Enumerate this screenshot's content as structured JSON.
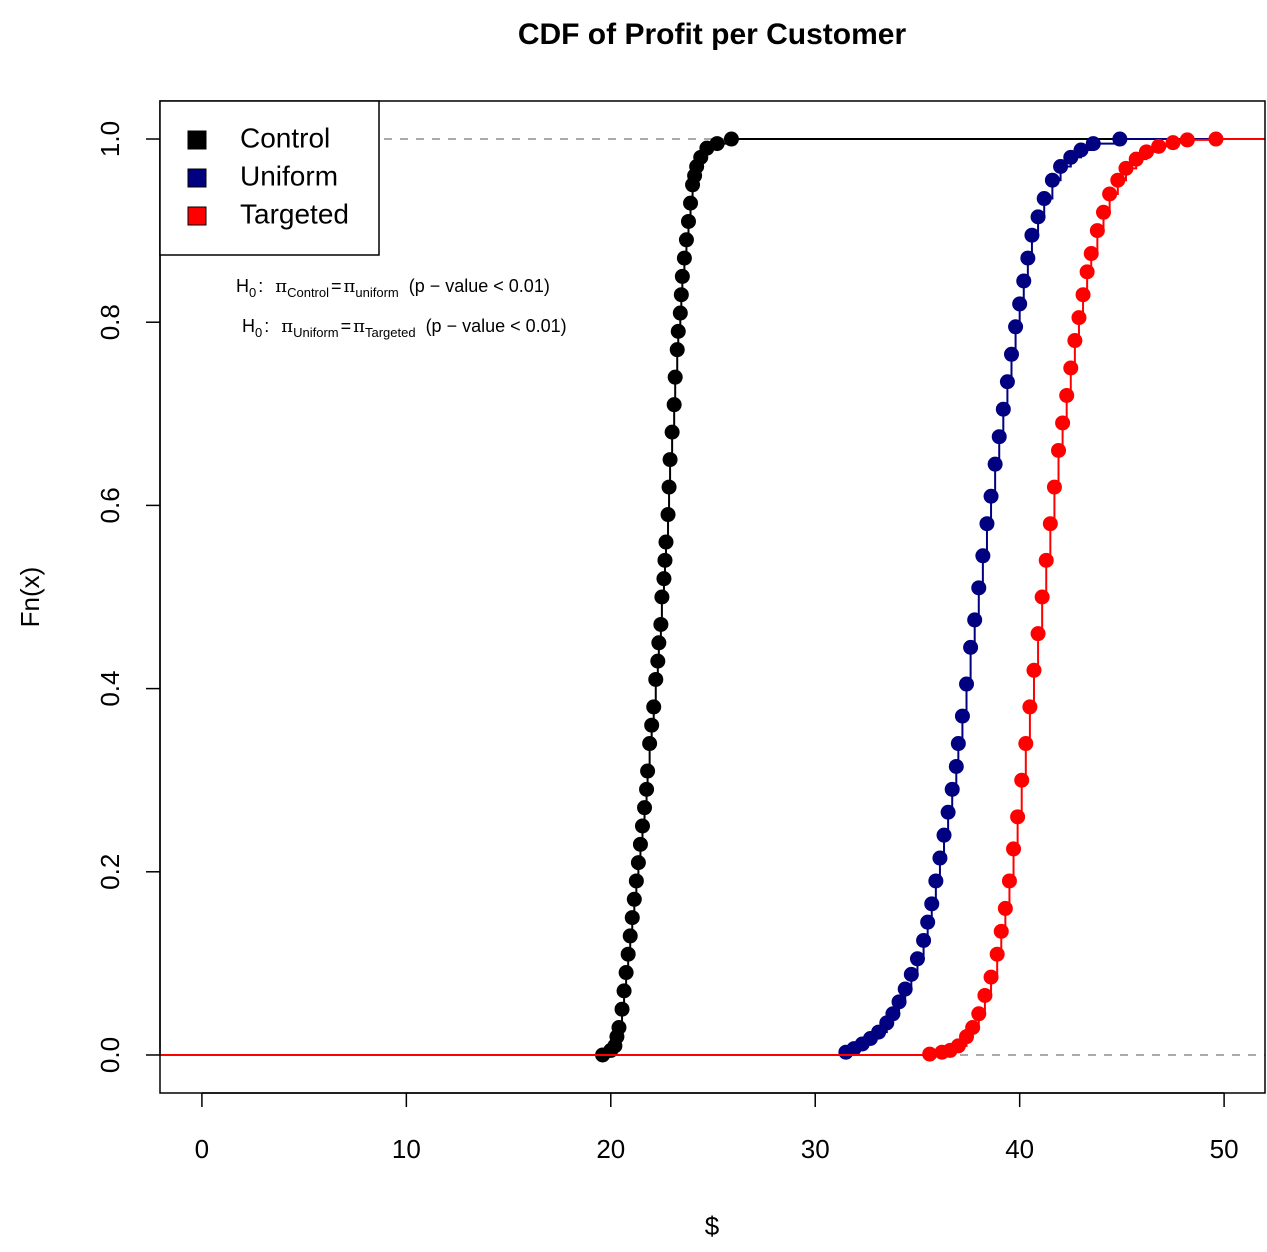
{
  "chart_data": {
    "type": "scatter",
    "title": "CDF of Profit per Customer",
    "x_label": "$",
    "y_label": "Fn(x)",
    "xlim": [
      -2.05,
      52.0
    ],
    "ylim": [
      -0.0415,
      1.0415
    ],
    "xticks": [
      0,
      10,
      20,
      30,
      40,
      50
    ],
    "yticks": [
      {
        "value": 0,
        "label": "0.0"
      },
      0.2,
      0.4,
      0.6,
      0.8,
      {
        "value": 1,
        "label": "1.0"
      }
    ],
    "reference_lines": [
      0,
      1
    ],
    "legend": "topleft",
    "series": [
      {
        "name": "Control",
        "color": "#000000",
        "x": [
          19.6,
          20.0,
          20.2,
          20.3,
          20.4,
          20.55,
          20.65,
          20.75,
          20.85,
          20.95,
          21.05,
          21.15,
          21.25,
          21.35,
          21.45,
          21.55,
          21.65,
          21.75,
          21.8,
          21.9,
          22.0,
          22.1,
          22.2,
          22.3,
          22.35,
          22.45,
          22.5,
          22.6,
          22.65,
          22.7,
          22.8,
          22.85,
          22.9,
          23.0,
          23.1,
          23.15,
          23.25,
          23.3,
          23.4,
          23.45,
          23.5,
          23.6,
          23.7,
          23.8,
          23.9,
          24.0,
          24.1,
          24.2,
          24.4,
          24.7,
          25.2,
          25.9
        ],
        "values": [
          0.0,
          0.005,
          0.01,
          0.02,
          0.03,
          0.05,
          0.07,
          0.09,
          0.11,
          0.13,
          0.15,
          0.17,
          0.19,
          0.21,
          0.23,
          0.25,
          0.27,
          0.29,
          0.31,
          0.34,
          0.36,
          0.38,
          0.41,
          0.43,
          0.45,
          0.47,
          0.5,
          0.52,
          0.54,
          0.56,
          0.59,
          0.62,
          0.65,
          0.68,
          0.71,
          0.74,
          0.77,
          0.79,
          0.81,
          0.83,
          0.85,
          0.87,
          0.89,
          0.91,
          0.93,
          0.95,
          0.96,
          0.97,
          0.98,
          0.99,
          0.995,
          1.0
        ]
      },
      {
        "name": "Uniform",
        "color": "#000080",
        "x": [
          31.5,
          31.9,
          32.3,
          32.7,
          33.1,
          33.5,
          33.8,
          34.1,
          34.4,
          34.7,
          35.0,
          35.3,
          35.5,
          35.7,
          35.9,
          36.1,
          36.3,
          36.5,
          36.7,
          36.9,
          37.0,
          37.2,
          37.4,
          37.6,
          37.8,
          38.0,
          38.2,
          38.4,
          38.6,
          38.8,
          39.0,
          39.2,
          39.4,
          39.6,
          39.8,
          40.0,
          40.2,
          40.4,
          40.6,
          40.9,
          41.2,
          41.6,
          42.0,
          42.5,
          43.0,
          43.6,
          44.9
        ],
        "values": [
          0.003,
          0.007,
          0.012,
          0.018,
          0.025,
          0.035,
          0.045,
          0.058,
          0.072,
          0.088,
          0.105,
          0.125,
          0.145,
          0.165,
          0.19,
          0.215,
          0.24,
          0.265,
          0.29,
          0.315,
          0.34,
          0.37,
          0.405,
          0.445,
          0.475,
          0.51,
          0.545,
          0.58,
          0.61,
          0.645,
          0.675,
          0.705,
          0.735,
          0.765,
          0.795,
          0.82,
          0.845,
          0.87,
          0.895,
          0.915,
          0.935,
          0.955,
          0.97,
          0.98,
          0.988,
          0.995,
          1.0
        ]
      },
      {
        "name": "Targeted",
        "color": "#ff0000",
        "x": [
          35.6,
          36.2,
          36.6,
          37.0,
          37.4,
          37.7,
          38.0,
          38.3,
          38.6,
          38.9,
          39.1,
          39.3,
          39.5,
          39.7,
          39.9,
          40.1,
          40.3,
          40.5,
          40.7,
          40.9,
          41.1,
          41.3,
          41.5,
          41.7,
          41.9,
          42.1,
          42.3,
          42.5,
          42.7,
          42.9,
          43.1,
          43.3,
          43.5,
          43.8,
          44.1,
          44.4,
          44.8,
          45.2,
          45.7,
          46.2,
          46.8,
          47.5,
          48.2,
          49.6
        ],
        "values": [
          0.001,
          0.003,
          0.005,
          0.01,
          0.02,
          0.03,
          0.045,
          0.065,
          0.085,
          0.11,
          0.135,
          0.16,
          0.19,
          0.225,
          0.26,
          0.3,
          0.34,
          0.38,
          0.42,
          0.46,
          0.5,
          0.54,
          0.58,
          0.62,
          0.66,
          0.69,
          0.72,
          0.75,
          0.78,
          0.805,
          0.83,
          0.855,
          0.875,
          0.9,
          0.92,
          0.94,
          0.955,
          0.968,
          0.978,
          0.986,
          0.992,
          0.996,
          0.999,
          1.0
        ]
      }
    ],
    "annotations": [
      {
        "h": "H",
        "h_sub": "0",
        "sep": ":",
        "lhs": "π",
        "lhs_sub": "Control",
        "eq": "=",
        "rhs": "π",
        "rhs_sub": "uniform",
        "note": "(p − value < 0.01)"
      },
      {
        "h": "H",
        "h_sub": "0",
        "sep": ":",
        "lhs": "π",
        "lhs_sub": "Uniform",
        "eq": "=",
        "rhs": "π",
        "rhs_sub": "Targeted",
        "note": "(p − value < 0.01)"
      }
    ]
  }
}
